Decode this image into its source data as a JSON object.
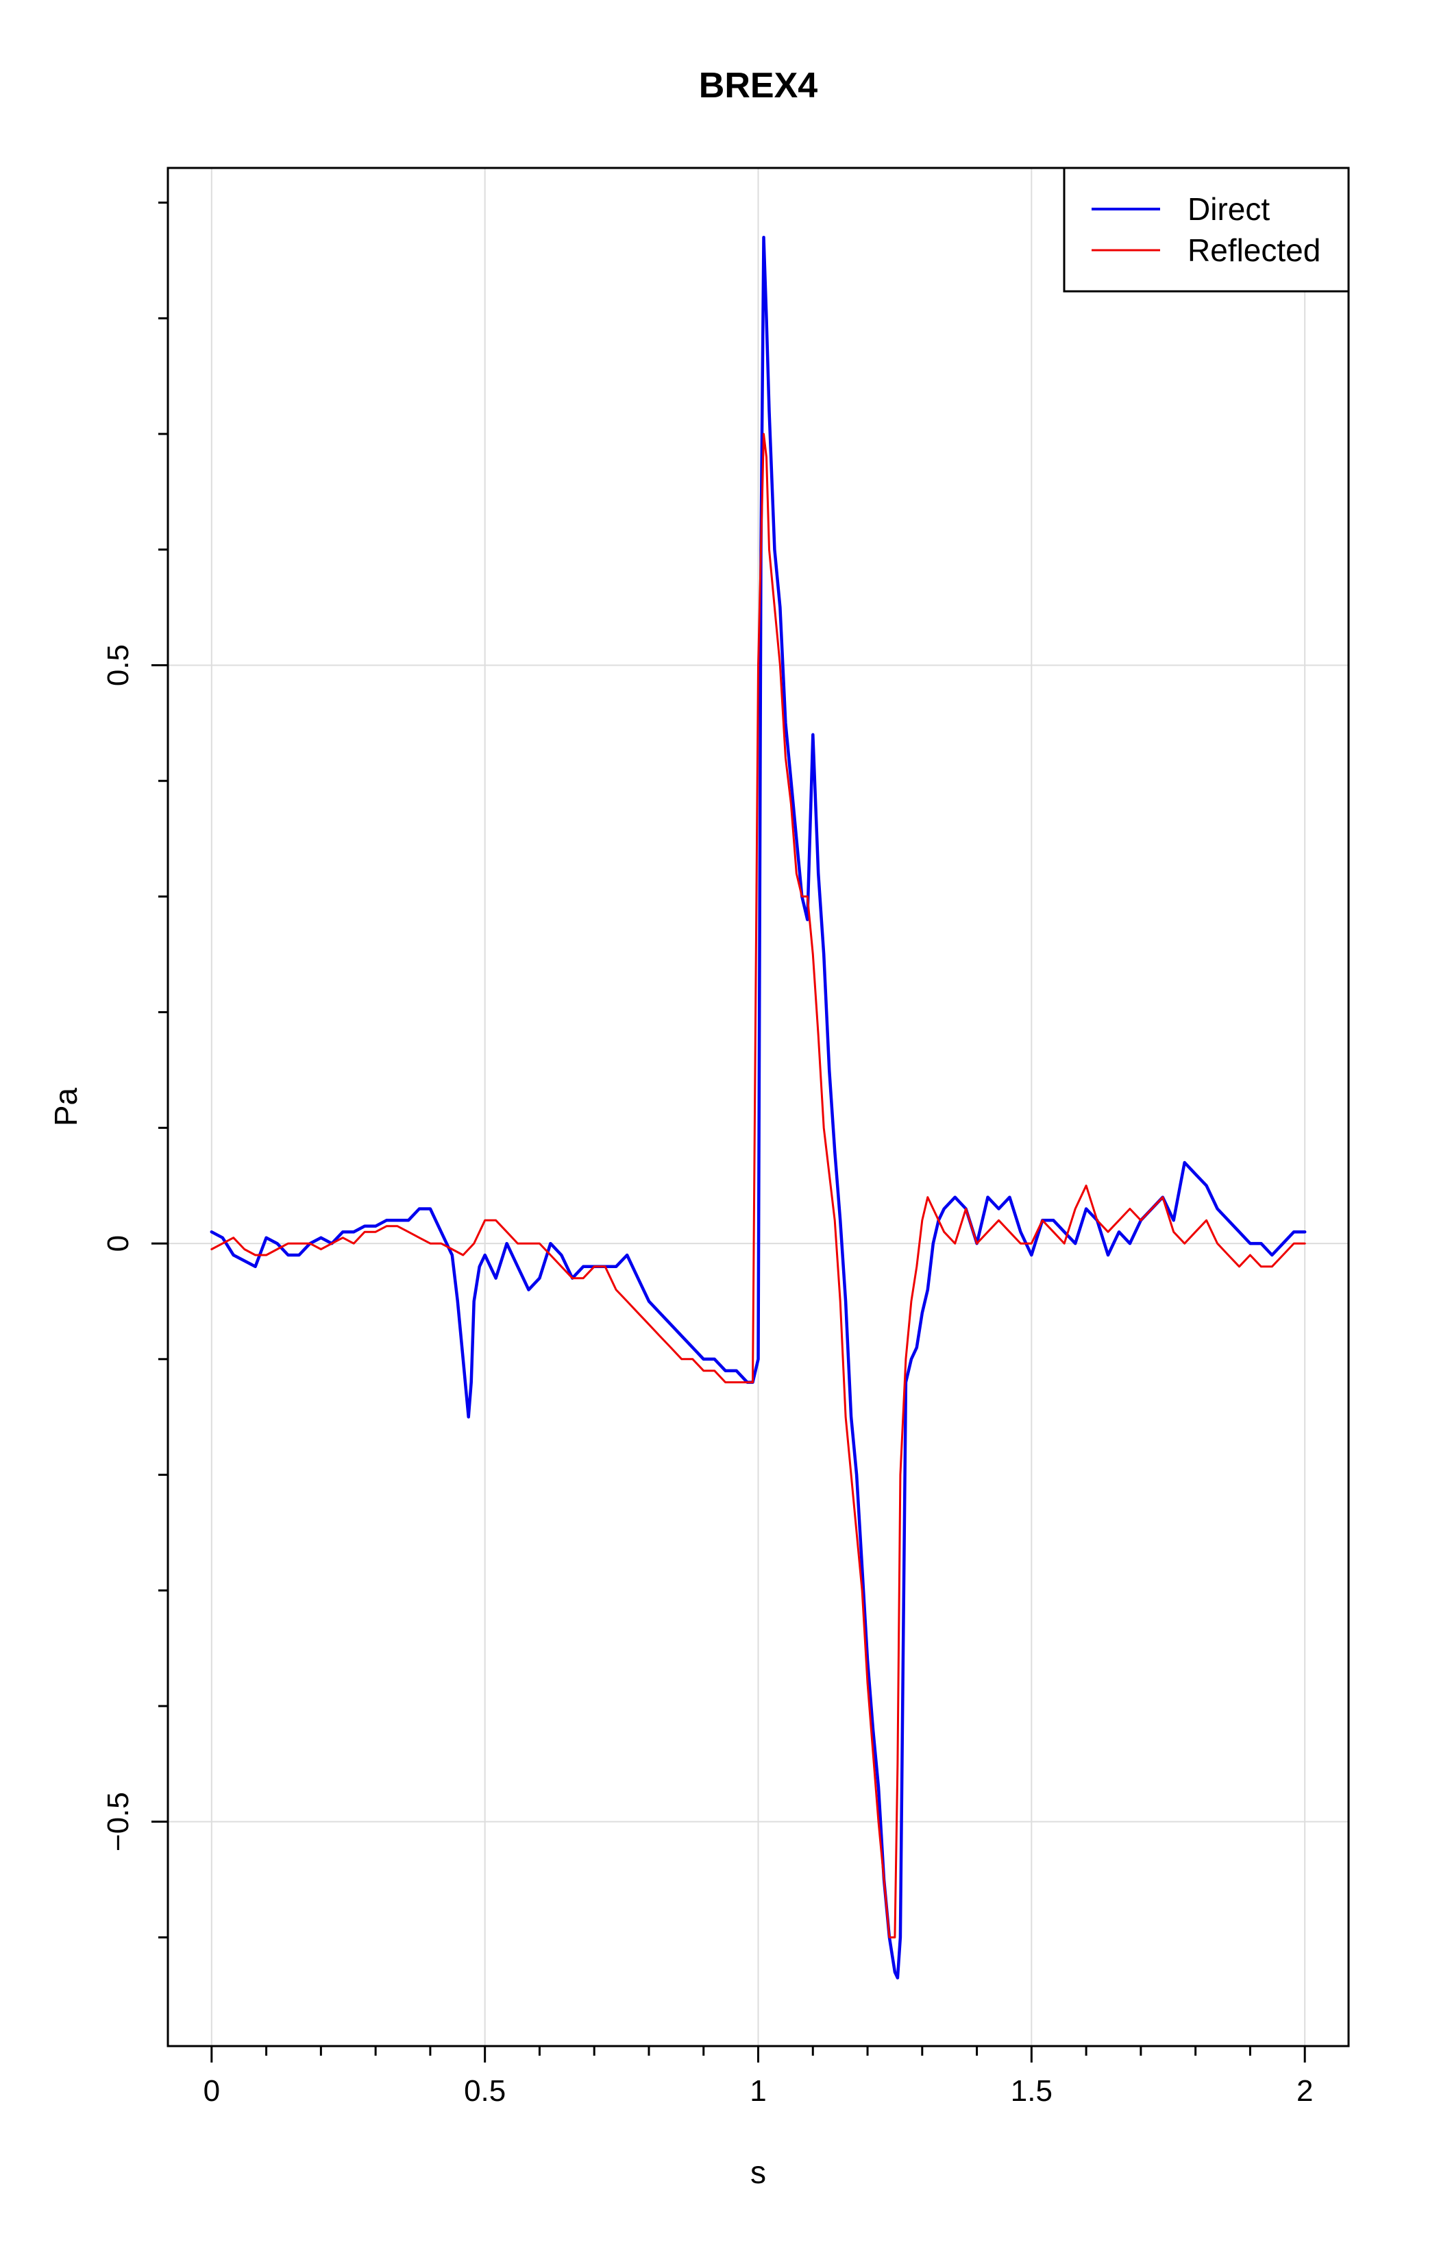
{
  "chart_data": {
    "type": "line",
    "title": "BREX4",
    "xlabel": "s",
    "ylabel": "Pa",
    "xlim": [
      -0.08,
      2.08
    ],
    "ylim": [
      -0.694,
      0.93
    ],
    "x_ticks": [
      0,
      0.5,
      1,
      1.5,
      2
    ],
    "x_tick_labels": [
      "0",
      "0.5",
      "1",
      "1.5",
      "2"
    ],
    "x_minor_ticks": [
      0.1,
      0.2,
      0.3,
      0.4,
      0.6,
      0.7,
      0.8,
      0.9,
      1.1,
      1.2,
      1.3,
      1.4,
      1.6,
      1.7,
      1.8,
      1.9
    ],
    "y_ticks": [
      -0.5,
      0,
      0.5
    ],
    "y_tick_labels": [
      "−0.5",
      "0",
      "0.5"
    ],
    "y_minor_ticks": [
      -0.6,
      -0.4,
      -0.3,
      -0.2,
      -0.1,
      0.1,
      0.2,
      0.3,
      0.4,
      0.6,
      0.7,
      0.8,
      0.9
    ],
    "grid": true,
    "legend_position": "top-right",
    "series": [
      {
        "name": "Direct",
        "color": "#0000EE",
        "x": [
          0,
          0.02,
          0.04,
          0.06,
          0.08,
          0.1,
          0.12,
          0.14,
          0.16,
          0.18,
          0.2,
          0.22,
          0.24,
          0.26,
          0.28,
          0.3,
          0.32,
          0.34,
          0.36,
          0.38,
          0.4,
          0.42,
          0.44,
          0.45,
          0.46,
          0.47,
          0.475,
          0.48,
          0.49,
          0.5,
          0.52,
          0.54,
          0.56,
          0.58,
          0.6,
          0.62,
          0.64,
          0.66,
          0.68,
          0.7,
          0.72,
          0.74,
          0.76,
          0.78,
          0.8,
          0.82,
          0.84,
          0.86,
          0.88,
          0.9,
          0.92,
          0.94,
          0.96,
          0.98,
          0.99,
          1.0,
          1.005,
          1.01,
          1.015,
          1.02,
          1.03,
          1.04,
          1.05,
          1.06,
          1.07,
          1.08,
          1.09,
          1.1,
          1.11,
          1.12,
          1.13,
          1.14,
          1.15,
          1.16,
          1.17,
          1.18,
          1.19,
          1.2,
          1.21,
          1.22,
          1.23,
          1.24,
          1.25,
          1.255,
          1.26,
          1.27,
          1.28,
          1.29,
          1.3,
          1.31,
          1.32,
          1.33,
          1.34,
          1.36,
          1.38,
          1.4,
          1.42,
          1.44,
          1.46,
          1.48,
          1.5,
          1.52,
          1.54,
          1.56,
          1.58,
          1.6,
          1.62,
          1.64,
          1.66,
          1.68,
          1.7,
          1.72,
          1.74,
          1.76,
          1.78,
          1.8,
          1.82,
          1.84,
          1.86,
          1.88,
          1.9,
          1.92,
          1.94,
          1.96,
          1.98,
          2.0
        ],
        "y": [
          0.01,
          0.005,
          -0.01,
          -0.015,
          -0.02,
          0.005,
          0.0,
          -0.01,
          -0.01,
          0.0,
          0.005,
          0.0,
          0.01,
          0.01,
          0.015,
          0.015,
          0.02,
          0.02,
          0.02,
          0.03,
          0.03,
          0.01,
          -0.01,
          -0.05,
          -0.1,
          -0.15,
          -0.12,
          -0.05,
          -0.02,
          -0.01,
          -0.03,
          0.0,
          -0.02,
          -0.04,
          -0.03,
          0.0,
          -0.01,
          -0.03,
          -0.02,
          -0.02,
          -0.02,
          -0.02,
          -0.01,
          -0.03,
          -0.05,
          -0.06,
          -0.07,
          -0.08,
          -0.09,
          -0.1,
          -0.1,
          -0.11,
          -0.11,
          -0.12,
          -0.12,
          -0.1,
          0.6,
          0.87,
          0.8,
          0.72,
          0.6,
          0.55,
          0.45,
          0.4,
          0.35,
          0.3,
          0.28,
          0.44,
          0.32,
          0.25,
          0.15,
          0.08,
          0.02,
          -0.05,
          -0.15,
          -0.2,
          -0.28,
          -0.36,
          -0.42,
          -0.47,
          -0.55,
          -0.6,
          -0.63,
          -0.635,
          -0.6,
          -0.12,
          -0.1,
          -0.09,
          -0.06,
          -0.04,
          0.0,
          0.02,
          0.03,
          0.04,
          0.03,
          0.0,
          0.04,
          0.03,
          0.04,
          0.01,
          -0.01,
          0.02,
          0.02,
          0.01,
          0.0,
          0.03,
          0.02,
          -0.01,
          0.01,
          0.0,
          0.02,
          0.03,
          0.04,
          0.02,
          0.07,
          0.06,
          0.05,
          0.03,
          0.02,
          0.01,
          0.0,
          0.0,
          -0.01,
          0.0,
          0.01,
          0.01
        ]
      },
      {
        "name": "Reflected",
        "color": "#EE0000",
        "x": [
          0,
          0.02,
          0.04,
          0.06,
          0.08,
          0.1,
          0.12,
          0.14,
          0.16,
          0.18,
          0.2,
          0.22,
          0.24,
          0.26,
          0.28,
          0.3,
          0.32,
          0.34,
          0.36,
          0.38,
          0.4,
          0.42,
          0.44,
          0.46,
          0.48,
          0.5,
          0.52,
          0.54,
          0.56,
          0.58,
          0.6,
          0.62,
          0.64,
          0.66,
          0.68,
          0.7,
          0.72,
          0.74,
          0.76,
          0.78,
          0.8,
          0.82,
          0.84,
          0.86,
          0.88,
          0.9,
          0.92,
          0.94,
          0.96,
          0.98,
          0.99,
          1.0,
          1.005,
          1.01,
          1.015,
          1.02,
          1.03,
          1.04,
          1.05,
          1.06,
          1.07,
          1.08,
          1.09,
          1.1,
          1.11,
          1.12,
          1.13,
          1.14,
          1.15,
          1.16,
          1.17,
          1.18,
          1.19,
          1.2,
          1.21,
          1.22,
          1.23,
          1.24,
          1.25,
          1.255,
          1.26,
          1.27,
          1.28,
          1.29,
          1.3,
          1.31,
          1.32,
          1.34,
          1.36,
          1.38,
          1.4,
          1.42,
          1.44,
          1.46,
          1.48,
          1.5,
          1.52,
          1.54,
          1.56,
          1.58,
          1.6,
          1.62,
          1.64,
          1.66,
          1.68,
          1.7,
          1.72,
          1.74,
          1.76,
          1.78,
          1.8,
          1.82,
          1.84,
          1.86,
          1.88,
          1.9,
          1.92,
          1.94,
          1.96,
          1.98,
          2.0
        ],
        "y": [
          -0.005,
          0.0,
          0.005,
          -0.005,
          -0.01,
          -0.01,
          -0.005,
          0.0,
          0.0,
          0.0,
          -0.005,
          0.0,
          0.005,
          0.0,
          0.01,
          0.01,
          0.015,
          0.015,
          0.01,
          0.005,
          0.0,
          0.0,
          -0.005,
          -0.01,
          0.0,
          0.02,
          0.02,
          0.01,
          0.0,
          0.0,
          0.0,
          -0.01,
          -0.02,
          -0.03,
          -0.03,
          -0.02,
          -0.02,
          -0.04,
          -0.05,
          -0.06,
          -0.07,
          -0.08,
          -0.09,
          -0.1,
          -0.1,
          -0.11,
          -0.11,
          -0.12,
          -0.12,
          -0.12,
          -0.12,
          0.5,
          0.6,
          0.7,
          0.68,
          0.6,
          0.55,
          0.5,
          0.42,
          0.38,
          0.32,
          0.3,
          0.3,
          0.25,
          0.18,
          0.1,
          0.06,
          0.02,
          -0.05,
          -0.15,
          -0.2,
          -0.25,
          -0.3,
          -0.38,
          -0.44,
          -0.5,
          -0.55,
          -0.6,
          -0.6,
          -0.45,
          -0.2,
          -0.1,
          -0.05,
          -0.02,
          0.02,
          0.04,
          0.03,
          0.01,
          0.0,
          0.03,
          0.0,
          0.01,
          0.02,
          0.01,
          0.0,
          0.0,
          0.02,
          0.01,
          0.0,
          0.03,
          0.05,
          0.02,
          0.01,
          0.02,
          0.03,
          0.02,
          0.03,
          0.04,
          0.01,
          0.0,
          0.01,
          0.02,
          0.0,
          -0.01,
          -0.02,
          -0.01,
          -0.02,
          -0.02,
          -0.01,
          0.0,
          0.0
        ]
      }
    ]
  }
}
